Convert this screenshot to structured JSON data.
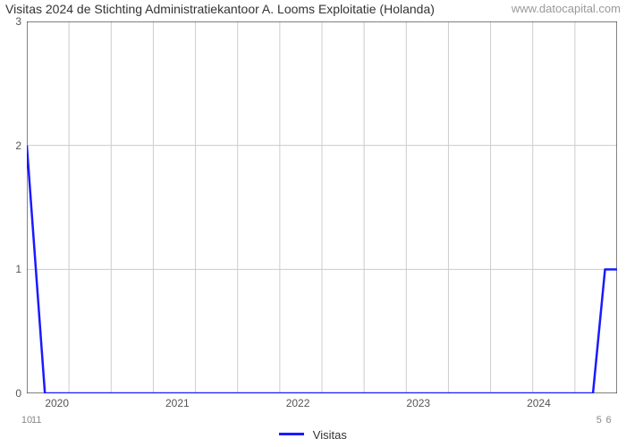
{
  "title": "Visitas 2024 de Stichting Administratiekantoor A. Looms    Exploitatie (Holanda)",
  "watermark": "www.datocapital.com",
  "chart": {
    "type": "line",
    "background_color": "#ffffff",
    "grid_color": "#cccccc",
    "border_color": "#333333",
    "line_color": "#1a1aff",
    "line_width": 2.5,
    "ylim": [
      0,
      3
    ],
    "xlim": [
      2019.75,
      2024.65
    ],
    "yticks": [
      0,
      1,
      2,
      3
    ],
    "xticks": [
      2020,
      2021,
      2022,
      2023,
      2024
    ],
    "x_grid_divisions": 14,
    "x_sublabels": [
      {
        "x": 2019.75,
        "text": "10"
      },
      {
        "x": 2019.83,
        "text": "11"
      },
      {
        "x": 2024.5,
        "text": "5"
      },
      {
        "x": 2024.58,
        "text": "6"
      }
    ],
    "series": {
      "name": "Visitas",
      "points": [
        {
          "x": 2019.75,
          "y": 2.0
        },
        {
          "x": 2019.9,
          "y": 0.0
        },
        {
          "x": 2024.45,
          "y": 0.0
        },
        {
          "x": 2024.55,
          "y": 1.0
        },
        {
          "x": 2024.65,
          "y": 1.0
        }
      ]
    }
  },
  "legend": {
    "label": "Visitas"
  },
  "title_fontsize": 14,
  "tick_fontsize": 12
}
